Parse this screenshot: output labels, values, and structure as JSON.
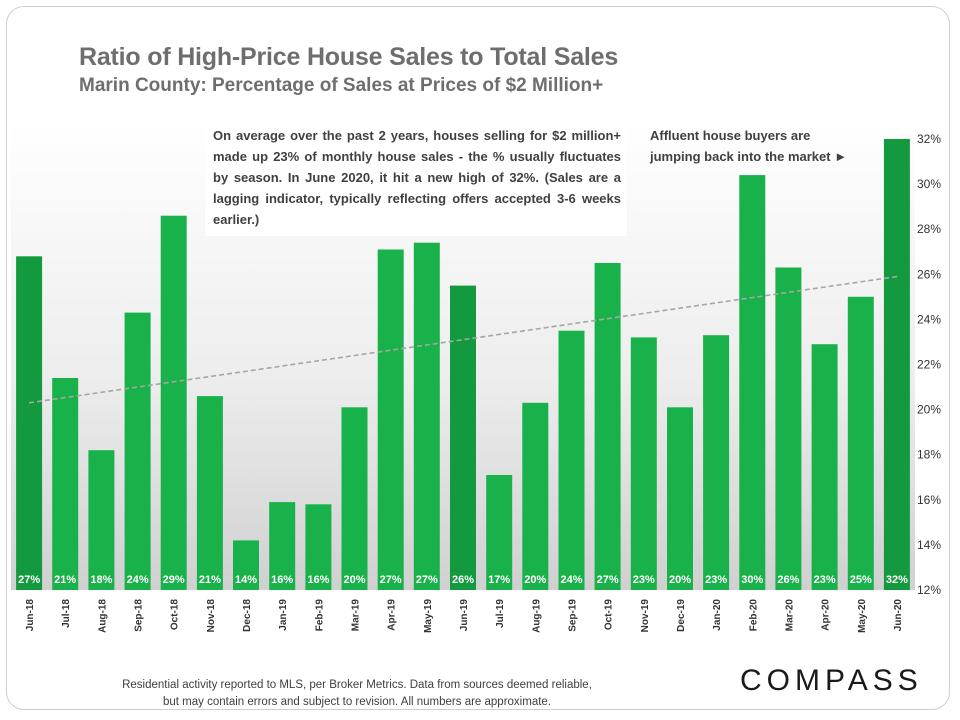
{
  "title": "Ratio of High-Price House Sales to Total Sales",
  "subtitle": "Marin County: Percentage of Sales at Prices of $2 Million+",
  "note": "On average over the past 2 years, houses selling for $2 million+ made up 23% of monthly house sales - the % usually fluctuates by season. In June 2020, it hit a new high of 32%. (Sales are a lagging indicator, typically reflecting offers accepted 3-6 weeks earlier.)",
  "callout": {
    "line1": "Affluent house buyers are",
    "line2": "jumping back into the market ►"
  },
  "footer": {
    "line1": "Residential activity reported to MLS, per Broker Metrics. Data from sources deemed reliable,",
    "line2": "but may contain errors and subject to revision. All numbers are approximate."
  },
  "logo": "COMPASS",
  "colors": {
    "bar": "#19b24a",
    "bar_highlight": "#139a3f",
    "trendline": "#a6a6a6",
    "text": "#6e6e6e"
  },
  "chart_data": {
    "type": "bar",
    "categories": [
      "Jun-18",
      "Jul-18",
      "Aug-18",
      "Sep-18",
      "Oct-18",
      "Nov-18",
      "Dec-18",
      "Jan-19",
      "Feb-19",
      "Mar-19",
      "Apr-19",
      "May-19",
      "Jun-19",
      "Jul-19",
      "Aug-19",
      "Sep-19",
      "Oct-19",
      "Nov-19",
      "Dec-19",
      "Jan-20",
      "Feb-20",
      "Mar-20",
      "Apr-20",
      "May-20",
      "Jun-20"
    ],
    "values": [
      26.8,
      21.4,
      18.2,
      24.3,
      28.6,
      20.6,
      14.2,
      15.9,
      15.8,
      20.1,
      27.1,
      27.4,
      25.5,
      17.1,
      20.3,
      23.5,
      26.5,
      23.2,
      20.1,
      23.3,
      30.4,
      26.3,
      22.9,
      25.0,
      32.0
    ],
    "data_labels": [
      "27%",
      "21%",
      "18%",
      "24%",
      "29%",
      "21%",
      "14%",
      "16%",
      "16%",
      "20%",
      "27%",
      "27%",
      "26%",
      "17%",
      "20%",
      "24%",
      "27%",
      "23%",
      "20%",
      "23%",
      "30%",
      "26%",
      "23%",
      "25%",
      "32%"
    ],
    "highlight_indices": [
      0,
      12,
      24
    ],
    "ylim": [
      12,
      32
    ],
    "yticks": [
      12,
      14,
      16,
      18,
      20,
      22,
      24,
      26,
      28,
      30,
      32
    ],
    "ytick_labels": [
      "12%",
      "14%",
      "16%",
      "18%",
      "20%",
      "22%",
      "24%",
      "26%",
      "28%",
      "30%",
      "32%"
    ],
    "y_axis_side": "right",
    "trendline": {
      "type": "linear",
      "style": "dashed",
      "start": 20.3,
      "end": 25.9
    },
    "grid": false,
    "legend": "none"
  }
}
